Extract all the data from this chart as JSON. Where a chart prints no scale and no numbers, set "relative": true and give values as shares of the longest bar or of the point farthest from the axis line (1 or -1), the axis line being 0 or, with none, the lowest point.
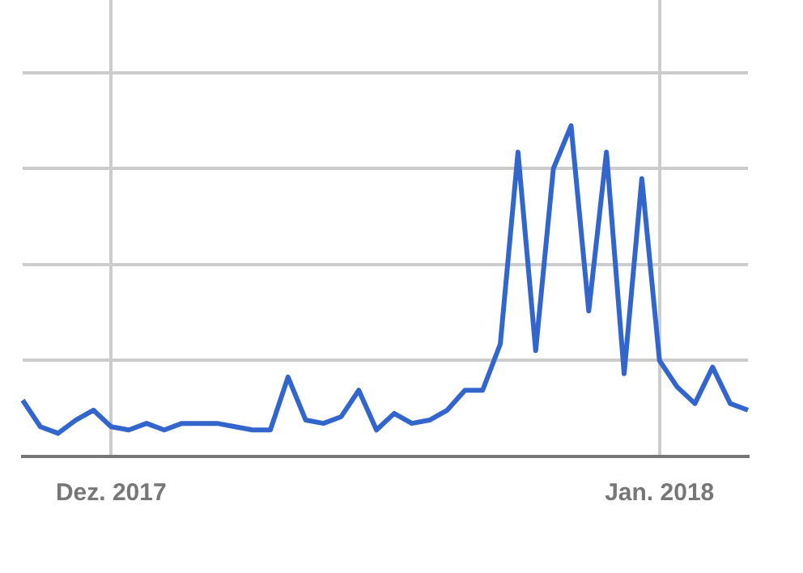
{
  "chart_data": {
    "type": "line",
    "relative": true,
    "grid": true,
    "color": "#3366cc",
    "categories": [
      null,
      null,
      null,
      null,
      null,
      "Dez. 2017",
      null,
      null,
      null,
      null,
      null,
      null,
      null,
      null,
      null,
      null,
      null,
      null,
      null,
      null,
      null,
      null,
      null,
      null,
      null,
      null,
      null,
      null,
      null,
      null,
      null,
      null,
      null,
      null,
      null,
      null,
      "Jan. 2018",
      null,
      null,
      null,
      null,
      null
    ],
    "values": [
      0.17,
      0.09,
      0.07,
      0.11,
      0.14,
      0.09,
      0.08,
      0.1,
      0.08,
      0.1,
      0.1,
      0.1,
      0.09,
      0.08,
      0.08,
      0.24,
      0.11,
      0.1,
      0.12,
      0.2,
      0.08,
      0.13,
      0.1,
      0.11,
      0.14,
      0.2,
      0.2,
      0.34,
      0.92,
      0.32,
      0.87,
      1,
      0.44,
      0.92,
      0.25,
      0.84,
      0.29,
      0.21,
      0.16,
      0.27,
      0.16,
      0.14
    ]
  }
}
